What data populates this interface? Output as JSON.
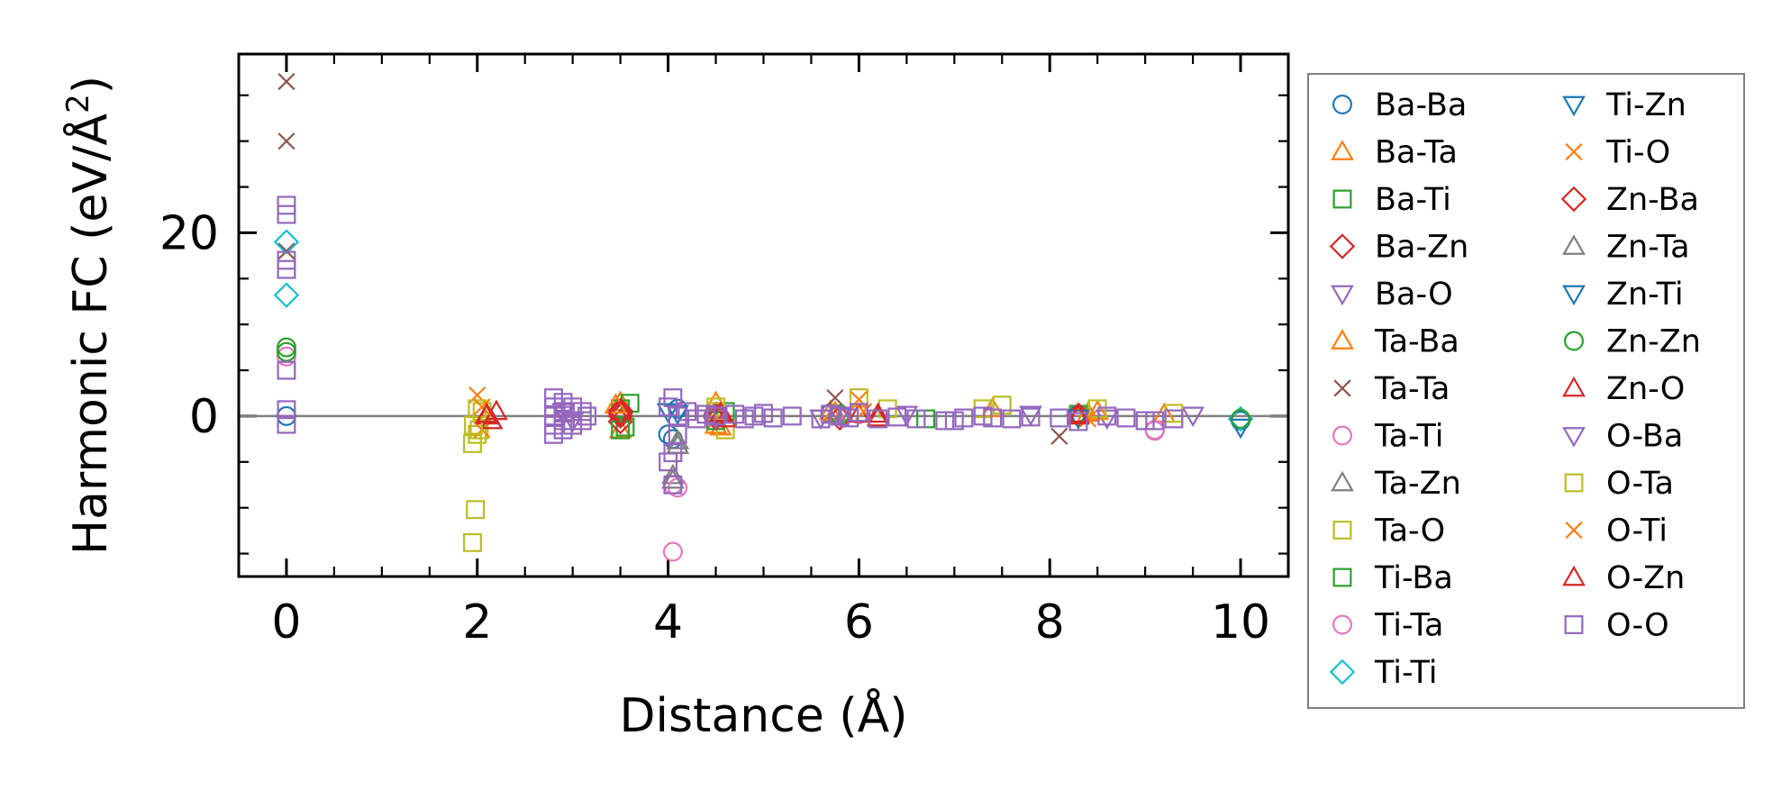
{
  "chart_data": {
    "type": "scatter",
    "title": "",
    "xlabel": "Distance (Å)",
    "ylabel": "Harmonic FC (eV/Å²)",
    "ylabel_main": "Harmonic FC (eV/Å",
    "ylabel_sup": "2",
    "ylabel_close": ")",
    "xlim": [
      -0.5,
      10.5
    ],
    "ylim": [
      -17.5,
      39.5
    ],
    "x_ticks": [
      0,
      2,
      4,
      6,
      8,
      10
    ],
    "x_tick_labels": [
      "0",
      "2",
      "4",
      "6",
      "8",
      "10"
    ],
    "y_ticks": [
      0,
      20
    ],
    "y_tick_labels": [
      "0",
      "20"
    ],
    "x_minor_step": 0.5,
    "y_minor_step": 5,
    "zero_line": true,
    "legend_location": "outside right",
    "series": [
      {
        "name": "Ba-Ba",
        "marker": "circle",
        "color": "#1f77b4",
        "points": [
          [
            0,
            0
          ],
          [
            4,
            -2
          ],
          [
            4.05,
            -2.5
          ],
          [
            4.1,
            0.8
          ],
          [
            5.7,
            0.3
          ],
          [
            8.3,
            0.2
          ],
          [
            10,
            -0.5
          ]
        ]
      },
      {
        "name": "Ba-Ta",
        "marker": "triangle-up",
        "color": "#ff7f0e",
        "points": [
          [
            3.5,
            1.5
          ],
          [
            3.5,
            -1.5
          ],
          [
            4.5,
            1.5
          ],
          [
            4.55,
            -1.2
          ],
          [
            5.7,
            0.5
          ],
          [
            7.4,
            0.8
          ],
          [
            8.4,
            0.3
          ],
          [
            9.2,
            0.2
          ]
        ]
      },
      {
        "name": "Ba-Ti",
        "marker": "square",
        "color": "#2ca02c",
        "points": [
          [
            3.5,
            0.8
          ],
          [
            3.55,
            -1.2
          ],
          [
            3.6,
            1.4
          ],
          [
            4.6,
            0.5
          ],
          [
            6.7,
            -0.3
          ],
          [
            8.3,
            0.2
          ]
        ]
      },
      {
        "name": "Ba-Zn",
        "marker": "diamond",
        "color": "#d62728",
        "points": [
          [
            3.5,
            0
          ],
          [
            3.5,
            0.6
          ],
          [
            3.5,
            -0.6
          ],
          [
            4.5,
            0.2
          ],
          [
            5.8,
            -0.2
          ],
          [
            8.3,
            0.1
          ]
        ]
      },
      {
        "name": "Ba-O",
        "marker": "triangle-down",
        "color": "#9467bd",
        "points": [
          [
            2.9,
            0.5
          ],
          [
            3,
            -0.5
          ],
          [
            4.5,
            0.3
          ],
          [
            5.6,
            -0.2
          ],
          [
            6.5,
            0.2
          ],
          [
            7.8,
            0.2
          ],
          [
            8.6,
            -0.2
          ],
          [
            9.5,
            0.1
          ]
        ]
      },
      {
        "name": "Ta-Ba",
        "marker": "triangle-up",
        "color": "#ff7f0e",
        "points": [
          [
            3.45,
            1.2
          ],
          [
            4.5,
            -1
          ],
          [
            5.75,
            0.4
          ],
          [
            8.5,
            0.5
          ]
        ]
      },
      {
        "name": "Ta-Ta",
        "marker": "x",
        "color": "#8c564b",
        "points": [
          [
            0,
            36.5
          ],
          [
            0,
            30
          ],
          [
            0,
            18
          ],
          [
            5.75,
            2
          ],
          [
            8.1,
            -2.2
          ]
        ]
      },
      {
        "name": "Ta-Ti",
        "marker": "circle",
        "color": "#e377c2",
        "points": [
          [
            0,
            6.5
          ],
          [
            4.05,
            -7.5
          ],
          [
            4.05,
            -14.8
          ],
          [
            6.0,
            0.2
          ],
          [
            9.1,
            -1.5
          ]
        ]
      },
      {
        "name": "Ta-Zn",
        "marker": "triangle-up",
        "color": "#7f7f7f",
        "points": [
          [
            4.05,
            -6.5
          ],
          [
            4.1,
            -2.7
          ],
          [
            4.1,
            -3.2
          ]
        ]
      },
      {
        "name": "Ta-O",
        "marker": "square",
        "color": "#bcbd22",
        "points": [
          [
            1.95,
            -13.8
          ],
          [
            1.98,
            -10.2
          ],
          [
            1.95,
            -3
          ],
          [
            2.0,
            -2
          ],
          [
            2.02,
            -1.5
          ],
          [
            2.05,
            0.5
          ],
          [
            4.5,
            1
          ],
          [
            4.6,
            -1.5
          ],
          [
            6.0,
            2
          ],
          [
            6.3,
            0.8
          ],
          [
            7.3,
            0.8
          ],
          [
            7.5,
            1.2
          ],
          [
            8.5,
            0.8
          ],
          [
            9.3,
            0.3
          ]
        ]
      },
      {
        "name": "Ti-Ba",
        "marker": "square",
        "color": "#2ca02c",
        "points": [
          [
            3.5,
            -1.5
          ],
          [
            4.5,
            -0.5
          ]
        ]
      },
      {
        "name": "Ti-Ta",
        "marker": "circle",
        "color": "#e377c2",
        "points": [
          [
            4.1,
            -7.8
          ],
          [
            9.1,
            -1.6
          ]
        ]
      },
      {
        "name": "Ti-Ti",
        "marker": "diamond",
        "color": "#17becf",
        "points": [
          [
            0,
            19
          ],
          [
            0,
            13.2
          ],
          [
            10,
            -0.3
          ]
        ]
      },
      {
        "name": "Ti-Zn",
        "marker": "triangle-down",
        "color": "#1f77b4",
        "points": [
          [
            4,
            0.5
          ],
          [
            8.3,
            -0.2
          ],
          [
            10,
            -1.2
          ]
        ]
      },
      {
        "name": "Ti-O",
        "marker": "x",
        "color": "#ff7f0e",
        "points": [
          [
            2.0,
            2.3
          ],
          [
            2.05,
            -1.5
          ],
          [
            6.0,
            1.8
          ],
          [
            8.4,
            -0.3
          ]
        ]
      },
      {
        "name": "Zn-Ba",
        "marker": "diamond",
        "color": "#d62728",
        "points": [
          [
            3.5,
            0.3
          ],
          [
            4.5,
            -0.2
          ]
        ]
      },
      {
        "name": "Zn-Ta",
        "marker": "triangle-up",
        "color": "#7f7f7f",
        "points": [
          [
            4.1,
            -3.2
          ],
          [
            4.05,
            -7
          ]
        ]
      },
      {
        "name": "Zn-Ti",
        "marker": "triangle-down",
        "color": "#1f77b4",
        "points": [
          [
            4.1,
            0.3
          ]
        ]
      },
      {
        "name": "Zn-Zn",
        "marker": "circle",
        "color": "#2ca02c",
        "points": [
          [
            0,
            7.5
          ],
          [
            0,
            7
          ],
          [
            5.8,
            0.2
          ],
          [
            10,
            -0.3
          ]
        ]
      },
      {
        "name": "Zn-O",
        "marker": "triangle-up",
        "color": "#d62728",
        "points": [
          [
            2.1,
            0
          ],
          [
            2.15,
            -0.5
          ],
          [
            2.2,
            0.5
          ],
          [
            4.5,
            0.2
          ],
          [
            4.6,
            -0.3
          ],
          [
            6.0,
            0.2
          ],
          [
            6.2,
            -0.2
          ],
          [
            8.3,
            0.2
          ]
        ]
      },
      {
        "name": "O-Ba",
        "marker": "triangle-down",
        "color": "#9467bd",
        "points": [
          [
            2.9,
            0.2
          ],
          [
            4.5,
            -0.2
          ],
          [
            5.8,
            0.1
          ]
        ]
      },
      {
        "name": "O-Ta",
        "marker": "square",
        "color": "#bcbd22",
        "points": [
          [
            1.96,
            -1
          ],
          [
            2.0,
            0.8
          ],
          [
            4.5,
            0.5
          ]
        ]
      },
      {
        "name": "O-Ti",
        "marker": "x",
        "color": "#ff7f0e",
        "points": [
          [
            2.05,
            1
          ],
          [
            6.05,
            0.5
          ]
        ]
      },
      {
        "name": "O-Zn",
        "marker": "triangle-up",
        "color": "#d62728",
        "points": [
          [
            2.1,
            0.2
          ],
          [
            4.55,
            0.3
          ],
          [
            6.2,
            0.2
          ],
          [
            8.3,
            0
          ]
        ]
      },
      {
        "name": "O-O",
        "marker": "square",
        "color": "#9467bd",
        "points": [
          [
            0,
            23
          ],
          [
            0,
            22
          ],
          [
            0,
            17
          ],
          [
            0,
            16
          ],
          [
            0,
            5
          ],
          [
            0,
            0.7
          ],
          [
            0,
            -0.9
          ],
          [
            2.8,
            2
          ],
          [
            2.8,
            1
          ],
          [
            2.8,
            0
          ],
          [
            2.8,
            -1
          ],
          [
            2.8,
            -2
          ],
          [
            2.9,
            1.5
          ],
          [
            2.9,
            0.5
          ],
          [
            2.9,
            -0.5
          ],
          [
            2.9,
            -1.5
          ],
          [
            3.0,
            1
          ],
          [
            3.0,
            -1
          ],
          [
            3.1,
            0.5
          ],
          [
            3.1,
            -0.5
          ],
          [
            3.15,
            0
          ],
          [
            4.0,
            -5
          ],
          [
            4.05,
            -7.5
          ],
          [
            4.05,
            -4
          ],
          [
            4.1,
            -2
          ],
          [
            4.0,
            1
          ],
          [
            4.05,
            2
          ],
          [
            4.1,
            0
          ],
          [
            4.2,
            0.5
          ],
          [
            4.3,
            -0.3
          ],
          [
            4.4,
            0.2
          ],
          [
            4.5,
            0
          ],
          [
            4.7,
            0.2
          ],
          [
            4.8,
            -0.3
          ],
          [
            4.9,
            0
          ],
          [
            5.0,
            0.3
          ],
          [
            5.1,
            -0.2
          ],
          [
            5.3,
            0
          ],
          [
            5.6,
            -0.3
          ],
          [
            5.7,
            0.2
          ],
          [
            5.8,
            0
          ],
          [
            5.9,
            -0.2
          ],
          [
            6.0,
            0.4
          ],
          [
            6.2,
            -0.3
          ],
          [
            6.4,
            -0.1
          ],
          [
            6.6,
            -0.3
          ],
          [
            6.9,
            -0.5
          ],
          [
            7.0,
            -0.5
          ],
          [
            7.1,
            -0.2
          ],
          [
            7.3,
            0
          ],
          [
            7.4,
            -0.2
          ],
          [
            7.6,
            -0.3
          ],
          [
            7.8,
            -0.1
          ],
          [
            8.1,
            -0.2
          ],
          [
            8.3,
            -0.6
          ],
          [
            8.6,
            0
          ],
          [
            8.8,
            -0.2
          ],
          [
            9.0,
            -0.5
          ],
          [
            9.1,
            -0.5
          ],
          [
            9.3,
            -0.3
          ]
        ]
      }
    ]
  }
}
